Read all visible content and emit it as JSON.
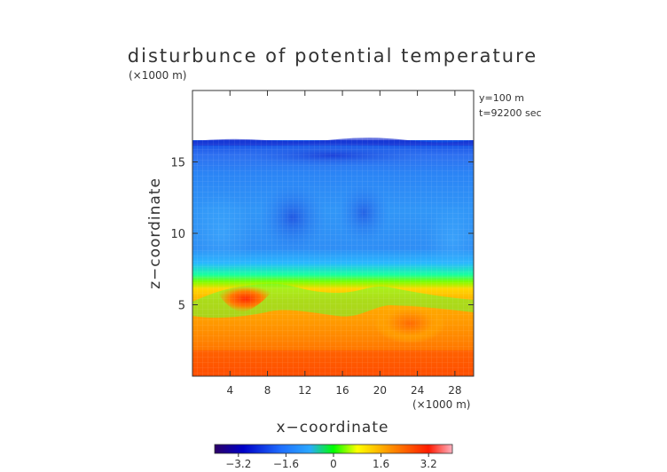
{
  "chart_data": {
    "type": "heatmap",
    "title": "disturbunce of potential temperature",
    "xlabel": "x−coordinate",
    "ylabel": "z−coordinate",
    "x_unit": "(×1000 m)",
    "z_unit": "(×1000 m)",
    "annotations": [
      "y=100 m",
      "t=92200 sec"
    ],
    "xlim": [
      0,
      30
    ],
    "ylim": [
      0,
      20
    ],
    "x_ticks": [
      4,
      8,
      12,
      16,
      20,
      24,
      28
    ],
    "x_tick_labels": [
      "4",
      "8",
      "12",
      "16",
      "20",
      "24",
      "28"
    ],
    "y_ticks": [
      5,
      10,
      15
    ],
    "y_tick_labels": [
      "5",
      "10",
      "15"
    ],
    "data_top_z": 16.6,
    "grid": true,
    "colorbar": {
      "range": [
        -4.0,
        4.0
      ],
      "ticks": [
        -3.2,
        -1.6,
        0,
        1.6,
        3.2
      ],
      "tick_labels": [
        "−3.2",
        "−1.6",
        "0",
        "1.6",
        "3.2"
      ]
    },
    "features": [
      {
        "x": 5.5,
        "z": 5.6,
        "value": 3.6
      },
      {
        "x": 22.5,
        "z": 4.0,
        "value": 2.6
      },
      {
        "x": 15.0,
        "z": 15.5,
        "value": -3.3
      },
      {
        "x": 10.5,
        "z": 11.0,
        "value": -2.3
      }
    ]
  },
  "colors": {
    "background": "#ffffff",
    "axis": "#333333",
    "text": "#333333",
    "colorbar_stops": [
      "#2b0066",
      "#0000c8",
      "#1f6fff",
      "#2aa8ff",
      "#00ff00",
      "#ffff00",
      "#ff9000",
      "#ff1a00",
      "#ffb0c0"
    ]
  }
}
